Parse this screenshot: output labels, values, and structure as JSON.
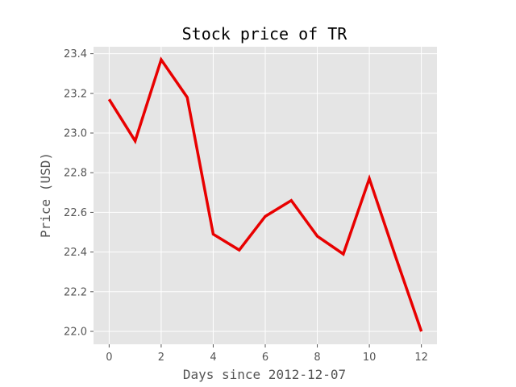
{
  "chart_data": {
    "type": "line",
    "title": "Stock price of TR",
    "xlabel": "Days since 2012-12-07",
    "ylabel": "Price (USD)",
    "x": [
      0,
      1,
      2,
      3,
      4,
      5,
      6,
      7,
      8,
      9,
      10,
      11,
      12
    ],
    "series": [
      {
        "values": [
          23.17,
          22.96,
          23.37,
          23.18,
          22.49,
          22.41,
          22.58,
          22.66,
          22.48,
          22.39,
          22.77,
          22.38,
          22.0
        ],
        "color": "#e80000"
      }
    ],
    "xlim": [
      -0.6,
      12.6
    ],
    "ylim": [
      21.935,
      23.435
    ],
    "xticks": [
      0,
      2,
      4,
      6,
      8,
      10,
      12
    ],
    "xtick_labels": [
      "0",
      "2",
      "4",
      "6",
      "8",
      "10",
      "12"
    ],
    "yticks": [
      22.0,
      22.2,
      22.4,
      22.6,
      22.8,
      23.0,
      23.2,
      23.4
    ],
    "ytick_labels": [
      "22.0",
      "22.2",
      "22.4",
      "22.6",
      "22.8",
      "23.0",
      "23.2",
      "23.4"
    ],
    "grid": true,
    "background": "#e5e5e5"
  }
}
